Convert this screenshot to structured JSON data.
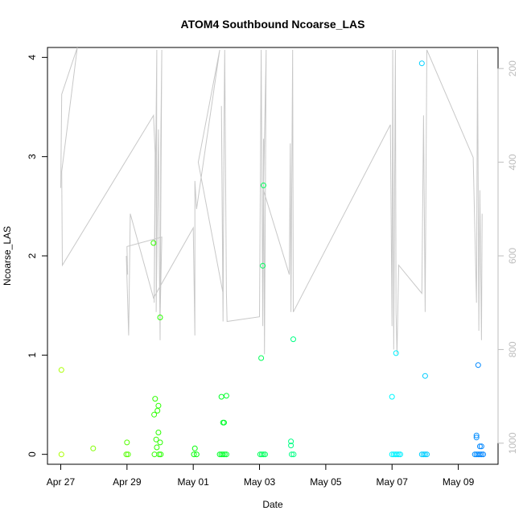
{
  "chart_data": {
    "type": "scatter",
    "title": "ATOM4 Southbound Ncoarse_LAS",
    "xlabel": "Date",
    "ylabel": "Ncoarse_LAS",
    "x_ticks": [
      "Apr 27",
      "Apr 29",
      "May 01",
      "May 03",
      "May 05",
      "May 07",
      "May 09"
    ],
    "x_tick_days": [
      0,
      2,
      4,
      6,
      8,
      10,
      12
    ],
    "xlim_days": [
      -0.4,
      13.2
    ],
    "ylim": [
      -0.1,
      4.1
    ],
    "y_ticks": [
      0,
      1,
      2,
      3,
      4
    ],
    "y_ticks_labels": [
      "0",
      "1",
      "2",
      "3",
      "4"
    ],
    "secondary_axis": {
      "label": "",
      "ticks": [
        200,
        400,
        600,
        800,
        1000
      ],
      "ticks_labels": [
        "200",
        "400",
        "600",
        "800",
        "1000"
      ],
      "ylim_reversed": [
        1045,
        155
      ],
      "color": "#bdbdbd"
    },
    "grid": false,
    "series": [
      {
        "type": "points",
        "color_scale": "green-to-blue by date",
        "points": [
          [
            0.02,
            0.85
          ],
          [
            0.02,
            0.0
          ],
          [
            0.98,
            0.06
          ],
          [
            2.0,
            0.12
          ],
          [
            1.98,
            0.0
          ],
          [
            2.03,
            0.0
          ],
          [
            2.8,
            2.13
          ],
          [
            2.82,
            0.4
          ],
          [
            2.85,
            0.56
          ],
          [
            2.88,
            0.15
          ],
          [
            2.9,
            0.07
          ],
          [
            2.83,
            0.0
          ],
          [
            2.92,
            0.44
          ],
          [
            2.95,
            0.49
          ],
          [
            2.95,
            0.22
          ],
          [
            3.0,
            0.12
          ],
          [
            3.0,
            1.38
          ],
          [
            2.97,
            0.0
          ],
          [
            3.02,
            0.0
          ],
          [
            4.05,
            0.06
          ],
          [
            4.02,
            0.0
          ],
          [
            4.1,
            0.0
          ],
          [
            4.85,
            0.58
          ],
          [
            4.9,
            0.32
          ],
          [
            4.93,
            0.32
          ],
          [
            5.0,
            0.59
          ],
          [
            4.8,
            0.0
          ],
          [
            4.85,
            0.0
          ],
          [
            4.9,
            0.0
          ],
          [
            4.95,
            0.0
          ],
          [
            5.0,
            0.0
          ],
          [
            6.05,
            0.97
          ],
          [
            6.12,
            2.71
          ],
          [
            6.1,
            1.9
          ],
          [
            6.02,
            0.0
          ],
          [
            6.07,
            0.0
          ],
          [
            6.12,
            0.0
          ],
          [
            6.17,
            0.0
          ],
          [
            6.95,
            0.13
          ],
          [
            6.95,
            0.09
          ],
          [
            7.02,
            1.16
          ],
          [
            6.97,
            0.0
          ],
          [
            7.03,
            0.0
          ],
          [
            10.0,
            0.58
          ],
          [
            10.12,
            1.02
          ],
          [
            10.0,
            0.0
          ],
          [
            10.05,
            0.0
          ],
          [
            10.1,
            0.0
          ],
          [
            10.15,
            0.0
          ],
          [
            10.2,
            0.0
          ],
          [
            10.25,
            0.0
          ],
          [
            10.9,
            3.94
          ],
          [
            11.0,
            0.79
          ],
          [
            10.9,
            0.0
          ],
          [
            10.95,
            0.0
          ],
          [
            11.0,
            0.0
          ],
          [
            11.05,
            0.0
          ],
          [
            12.6,
            0.9
          ],
          [
            12.55,
            0.19
          ],
          [
            12.55,
            0.17
          ],
          [
            12.65,
            0.08
          ],
          [
            12.7,
            0.08
          ],
          [
            12.5,
            0.0
          ],
          [
            12.55,
            0.0
          ],
          [
            12.6,
            0.0
          ],
          [
            12.65,
            0.0
          ],
          [
            12.7,
            0.0
          ],
          [
            12.75,
            0.0
          ]
        ]
      },
      {
        "type": "line",
        "axis": "secondary",
        "color": "#c8c8c8",
        "points": [
          [
            0.0,
            455
          ],
          [
            0.03,
            255
          ],
          [
            0.5,
            155
          ],
          [
            0.03,
            420
          ],
          [
            0.05,
            620
          ],
          [
            2.8,
            300
          ],
          [
            2.85,
            380
          ],
          [
            2.82,
            700
          ],
          [
            2.9,
            160
          ],
          [
            2.88,
            720
          ],
          [
            2.95,
            330
          ],
          [
            2.97,
            570
          ],
          [
            3.0,
            780
          ],
          [
            3.02,
            360
          ],
          [
            3.05,
            160
          ],
          [
            3.0,
            730
          ],
          [
            3.05,
            560
          ],
          [
            2.0,
            580
          ],
          [
            2.02,
            640
          ],
          [
            1.98,
            600
          ],
          [
            2.05,
            770
          ],
          [
            2.1,
            510
          ],
          [
            2.8,
            690
          ],
          [
            4.0,
            540
          ],
          [
            4.05,
            770
          ],
          [
            4.05,
            440
          ],
          [
            4.1,
            500
          ],
          [
            4.8,
            160
          ],
          [
            4.15,
            400
          ],
          [
            4.9,
            680
          ],
          [
            4.85,
            280
          ],
          [
            4.9,
            740
          ],
          [
            4.93,
            300
          ],
          [
            4.95,
            160
          ],
          [
            5.0,
            680
          ],
          [
            5.02,
            740
          ],
          [
            6.0,
            730
          ],
          [
            6.05,
            160
          ],
          [
            6.1,
            750
          ],
          [
            6.12,
            350
          ],
          [
            6.15,
            810
          ],
          [
            6.2,
            160
          ],
          [
            6.12,
            460
          ],
          [
            6.9,
            640
          ],
          [
            6.93,
            360
          ],
          [
            6.95,
            720
          ],
          [
            7.0,
            160
          ],
          [
            7.02,
            720
          ],
          [
            9.95,
            320
          ],
          [
            10.0,
            750
          ],
          [
            10.02,
            160
          ],
          [
            10.05,
            800
          ],
          [
            10.1,
            160
          ],
          [
            10.12,
            720
          ],
          [
            10.15,
            810
          ],
          [
            10.2,
            620
          ],
          [
            10.9,
            680
          ],
          [
            10.95,
            300
          ],
          [
            11.0,
            720
          ],
          [
            11.05,
            160
          ],
          [
            12.45,
            390
          ],
          [
            12.55,
            700
          ],
          [
            12.58,
            160
          ],
          [
            12.62,
            760
          ],
          [
            12.65,
            460
          ],
          [
            12.7,
            780
          ],
          [
            12.72,
            510
          ]
        ]
      }
    ]
  }
}
